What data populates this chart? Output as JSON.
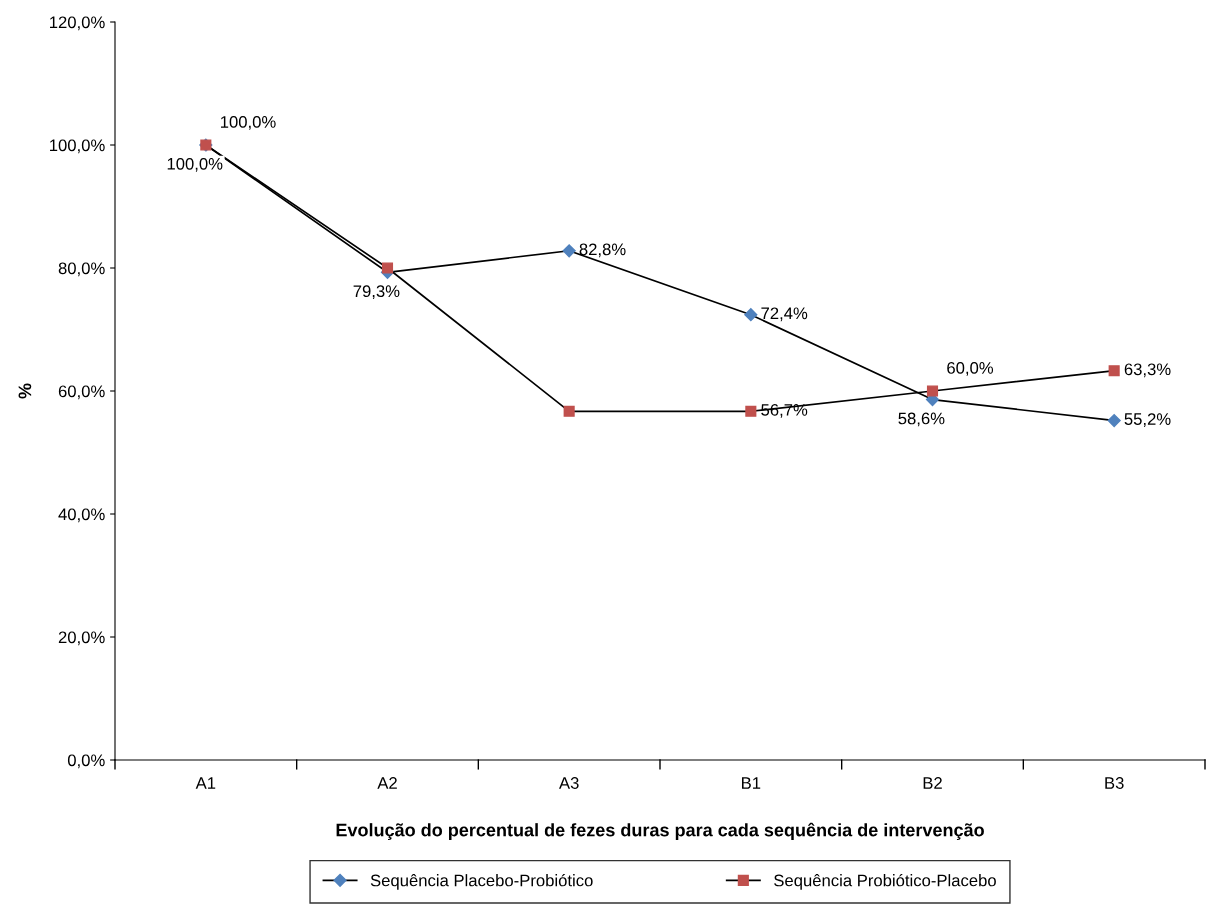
{
  "chart_data": {
    "type": "line",
    "xlabel": "Evolução do percentual de fezes duras para cada sequência de intervenção",
    "ylabel": "%",
    "categories": [
      "A1",
      "A2",
      "A3",
      "B1",
      "B2",
      "B3"
    ],
    "series": [
      {
        "name": "Sequência Placebo-Probiótico",
        "color": "#4f81bd",
        "marker": "diamond",
        "values": [
          100.0,
          79.3,
          82.8,
          72.4,
          58.6,
          55.2
        ],
        "value_labels": [
          "100,0%",
          "79,3%",
          "82,8%",
          "72,4%",
          "58,6%",
          "55,2%"
        ]
      },
      {
        "name": "Sequência Probiótico-Placebo",
        "color": "#c0504d",
        "marker": "square",
        "values": [
          100.0,
          80.0,
          56.7,
          56.7,
          60.0,
          63.3
        ],
        "value_labels": [
          "100,0%",
          null,
          null,
          "56,7%",
          "60,0%",
          "63,3%"
        ]
      }
    ],
    "ylim": [
      0,
      120
    ],
    "yticks": [
      {
        "value": 0,
        "label": "0,0%"
      },
      {
        "value": 20,
        "label": "20,0%"
      },
      {
        "value": 40,
        "label": "40,0%"
      },
      {
        "value": 60,
        "label": "60,0%"
      },
      {
        "value": 80,
        "label": "80,0%"
      },
      {
        "value": 100,
        "label": "100,0%"
      },
      {
        "value": 120,
        "label": "120,0%"
      }
    ],
    "grid": false,
    "legend": "bottom",
    "line_style": "solid"
  }
}
